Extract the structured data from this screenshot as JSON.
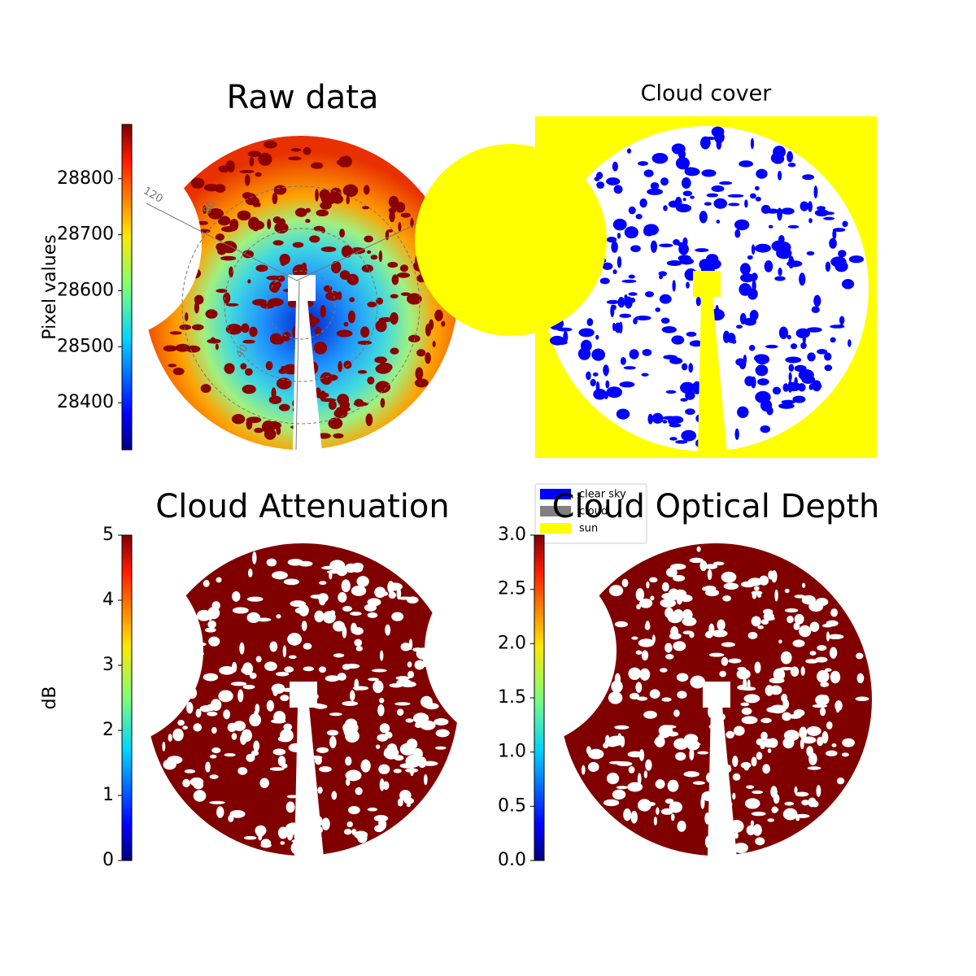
{
  "chart_data": [
    {
      "type": "image",
      "title": "Raw data",
      "colormap": "jet",
      "colorbar": {
        "label": "Pixel values",
        "ylim": [
          28316,
          28897
        ],
        "yticks": [
          28400,
          28500,
          28600,
          28700,
          28800
        ]
      },
      "annotations": [
        "120",
        "80",
        "40"
      ]
    },
    {
      "type": "image",
      "title": "Cloud cover",
      "series": [
        {
          "name": "clear sky",
          "color": "#0000ff"
        },
        {
          "name": "cloud",
          "color": "#808080"
        },
        {
          "name": "sun",
          "color": "#ffff00"
        }
      ]
    },
    {
      "type": "image",
      "title": "Cloud Attenuation",
      "colormap": "jet",
      "colorbar": {
        "label": "dB",
        "ylim": [
          0,
          5
        ],
        "yticks": [
          0,
          1,
          2,
          3,
          4,
          5
        ]
      }
    },
    {
      "type": "image",
      "title": "Cloud Optical Depth",
      "colormap": "jet",
      "colorbar": {
        "ylim": [
          0,
          3
        ],
        "yticks": [
          {
            "value": 0,
            "label": "0.0"
          },
          {
            "value": 0.5,
            "label": "0.5"
          },
          {
            "value": 1,
            "label": "1.0"
          },
          {
            "value": 1.5,
            "label": "1.5"
          },
          {
            "value": 2,
            "label": "2.0"
          },
          {
            "value": 2.5,
            "label": "2.5"
          },
          {
            "value": 3,
            "label": "3.0"
          }
        ]
      }
    }
  ]
}
